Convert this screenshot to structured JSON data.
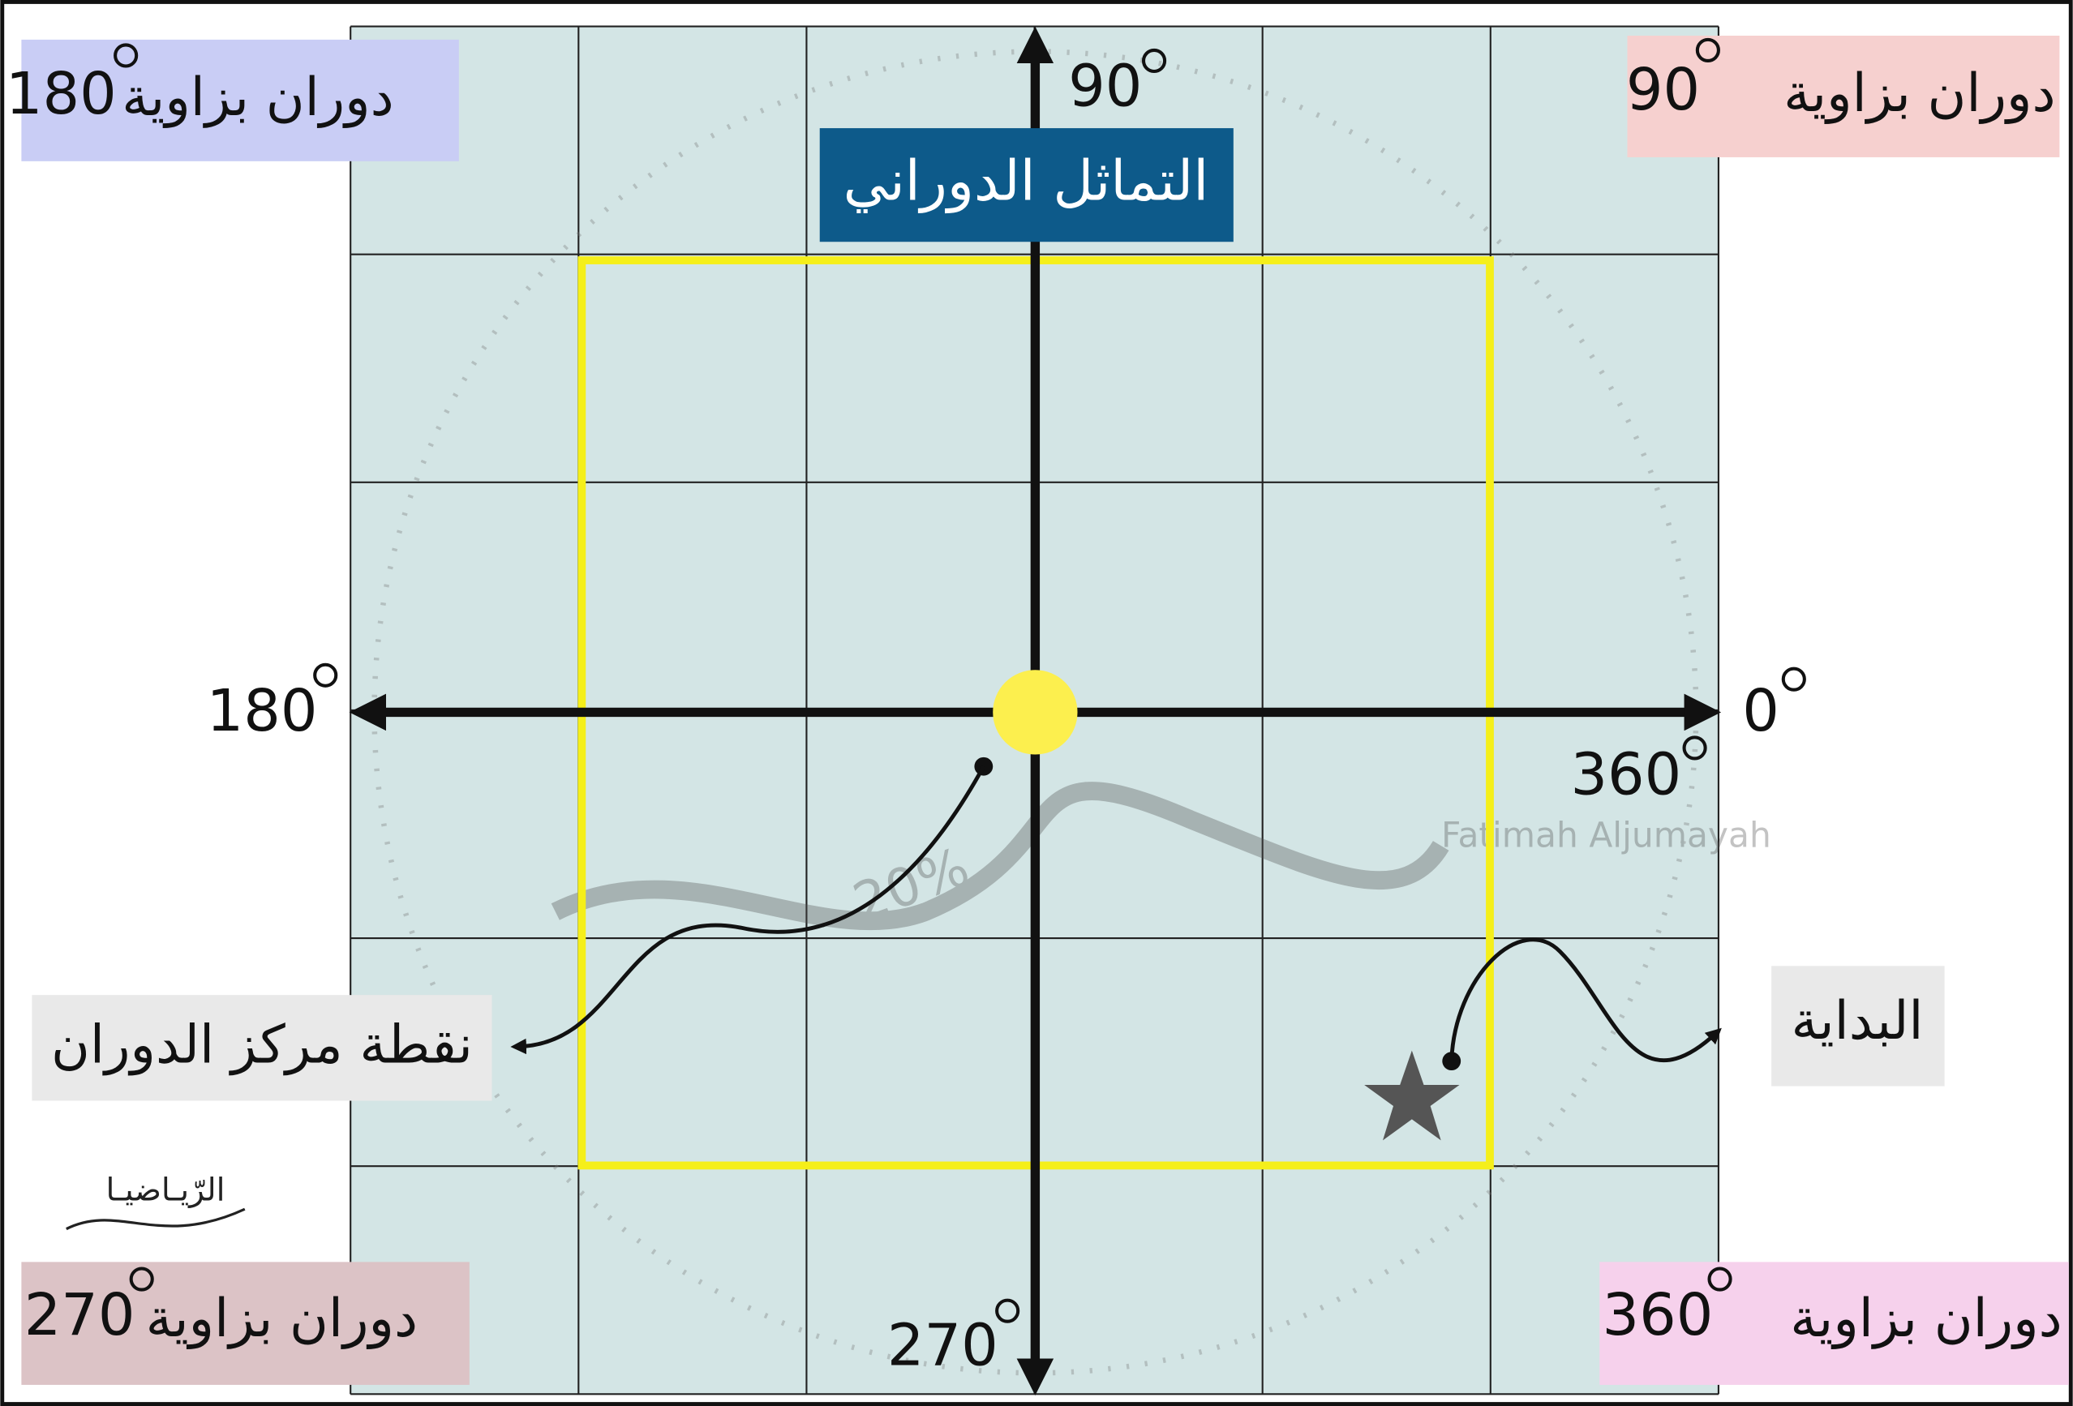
{
  "title": "التماثل الدوراني",
  "corner_labels": [
    {
      "text": "دوران بزاوية",
      "angle": "180"
    },
    {
      "text": "دوران بزاوية",
      "angle": "90"
    },
    {
      "text": "دوران بزاوية",
      "angle": "270"
    },
    {
      "text": "دوران بزاوية",
      "angle": "360"
    }
  ],
  "axis_labels": {
    "top": "90",
    "left": "180",
    "right": "0",
    "right_below": "360",
    "bottom": "270"
  },
  "annotations": {
    "center": "نقطة مركز الدوران",
    "start": "البداية"
  },
  "watermark": {
    "logo": "الرّيـاضيـا",
    "author": "Fatimah Aljumayah",
    "percent": "20%"
  }
}
